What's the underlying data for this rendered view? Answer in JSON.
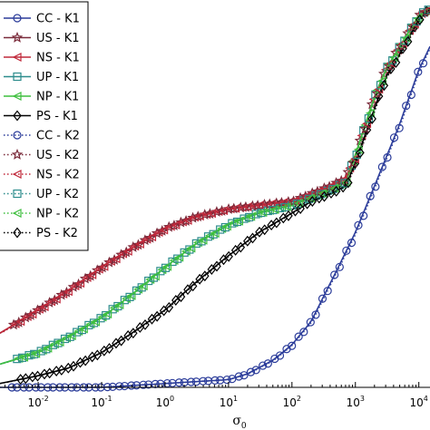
{
  "chart_data": {
    "type": "line",
    "xlabel": "σ",
    "xlabel_subscript": "0",
    "ylabel": "",
    "x_scale": "log",
    "xlim": [
      0.0025,
      15000
    ],
    "ylim": [
      0,
      1
    ],
    "x_tick_labels": [
      {
        "value": 0.01,
        "base": "10",
        "exp": "-2"
      },
      {
        "value": 0.1,
        "base": "10",
        "exp": "-1"
      },
      {
        "value": 1,
        "base": "10",
        "exp": "0"
      },
      {
        "value": 10,
        "base": "10",
        "exp": "1"
      },
      {
        "value": 100,
        "base": "10",
        "exp": "2"
      },
      {
        "value": 1000,
        "base": "10",
        "exp": "3"
      },
      {
        "value": 10000,
        "base": "10",
        "exp": "4"
      }
    ],
    "legend_placement": "top-left",
    "series": [
      {
        "name": "CC - K1",
        "color": "#2b3c9a",
        "dash": "solid",
        "marker": "circle"
      },
      {
        "name": "US - K1",
        "color": "#7a2a3a",
        "dash": "solid",
        "marker": "star"
      },
      {
        "name": "NS - K1",
        "color": "#c0283a",
        "dash": "solid",
        "marker": "triangle-left"
      },
      {
        "name": "UP - K1",
        "color": "#2c8c8c",
        "dash": "solid",
        "marker": "square"
      },
      {
        "name": "NP - K1",
        "color": "#3fbf3f",
        "dash": "solid",
        "marker": "triangle-left"
      },
      {
        "name": "PS - K1",
        "color": "#000000",
        "dash": "solid",
        "marker": "diamond"
      },
      {
        "name": "CC - K2",
        "color": "#2b3c9a",
        "dash": "dotted",
        "marker": "circle"
      },
      {
        "name": "US - K2",
        "color": "#7a2a3a",
        "dash": "dotted",
        "marker": "star"
      },
      {
        "name": "NS - K2",
        "color": "#c0283a",
        "dash": "dotted",
        "marker": "triangle-left"
      },
      {
        "name": "UP - K2",
        "color": "#2c8c8c",
        "dash": "dotted",
        "marker": "square"
      },
      {
        "name": "NP - K2",
        "color": "#3fbf3f",
        "dash": "dotted",
        "marker": "triangle-left"
      },
      {
        "name": "PS - K2",
        "color": "#000000",
        "dash": "dotted",
        "marker": "diamond"
      }
    ],
    "curves": {
      "CC": {
        "x": [
          0.0025,
          0.01,
          0.1,
          1,
          10,
          20,
          50,
          100,
          200,
          500,
          1000,
          2000,
          5000,
          10000,
          15000
        ],
        "y": [
          0.0,
          0.0,
          0.0,
          0.01,
          0.02,
          0.035,
          0.07,
          0.11,
          0.17,
          0.3,
          0.4,
          0.52,
          0.68,
          0.82,
          0.88
        ]
      },
      "US": {
        "x": [
          0.0025,
          0.01,
          0.03,
          0.1,
          0.3,
          1,
          3,
          10,
          30,
          100,
          200,
          400,
          700,
          1000,
          2000,
          3000,
          5000,
          10000,
          15000
        ],
        "y": [
          0.14,
          0.2,
          0.25,
          0.31,
          0.36,
          0.41,
          0.44,
          0.46,
          0.47,
          0.48,
          0.5,
          0.52,
          0.54,
          0.6,
          0.75,
          0.82,
          0.88,
          0.96,
          0.98
        ]
      },
      "UP": {
        "x": [
          0.0025,
          0.01,
          0.03,
          0.1,
          0.3,
          1,
          3,
          10,
          30,
          100,
          200,
          400,
          700,
          1000,
          2000,
          3000,
          5000,
          10000,
          15000
        ],
        "y": [
          0.06,
          0.09,
          0.13,
          0.18,
          0.24,
          0.31,
          0.37,
          0.42,
          0.45,
          0.47,
          0.49,
          0.51,
          0.53,
          0.6,
          0.75,
          0.82,
          0.88,
          0.96,
          0.98
        ]
      },
      "PS": {
        "x": [
          0.0025,
          0.01,
          0.03,
          0.1,
          0.3,
          1,
          3,
          10,
          30,
          100,
          200,
          400,
          700,
          1000,
          2000,
          3000,
          5000,
          10000,
          15000
        ],
        "y": [
          0.01,
          0.03,
          0.05,
          0.09,
          0.14,
          0.2,
          0.27,
          0.34,
          0.4,
          0.45,
          0.48,
          0.5,
          0.52,
          0.58,
          0.72,
          0.8,
          0.86,
          0.95,
          0.98
        ]
      }
    }
  }
}
